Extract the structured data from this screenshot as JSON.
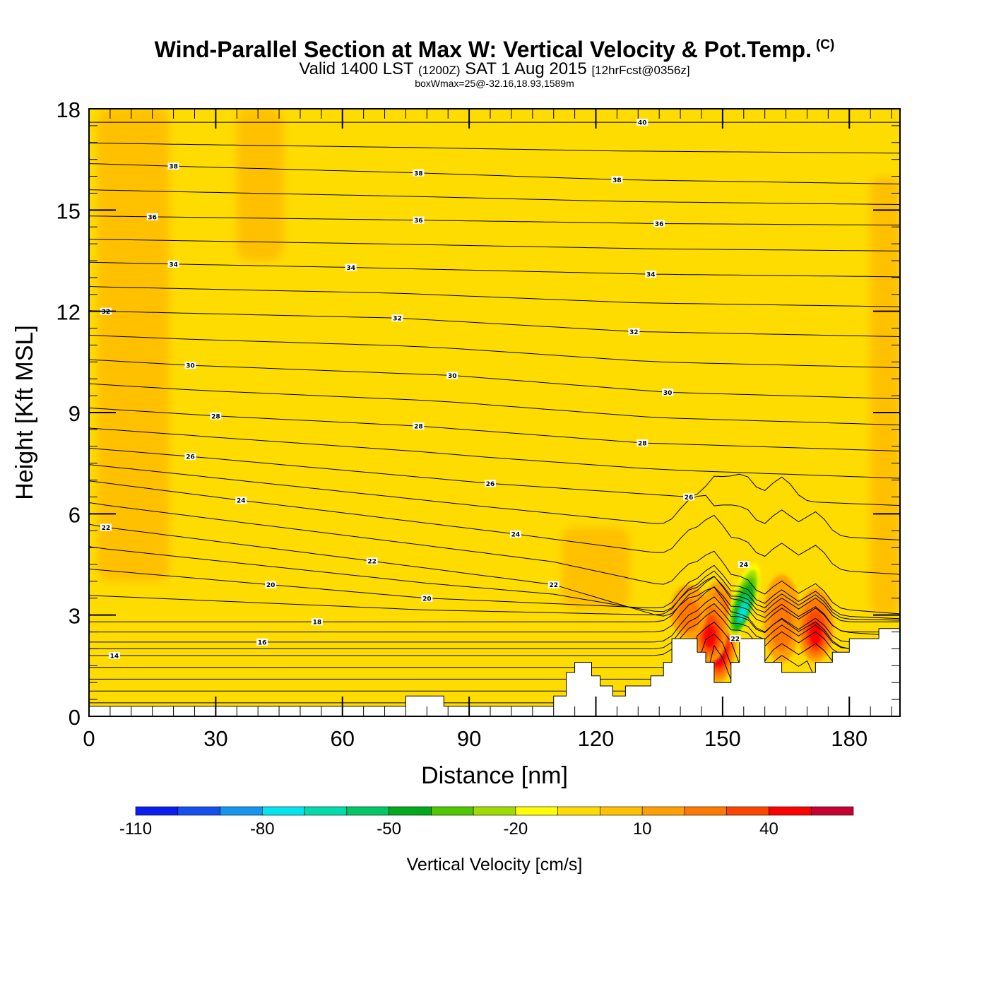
{
  "header": {
    "title": "Wind-Parallel Section at Max W: Vertical Velocity & Pot.Temp.",
    "copyright": "(C)",
    "subtitle_main": "Valid 1400 LST",
    "subtitle_utc": "(1200Z)",
    "subtitle_date": "SAT 1 Aug 2015",
    "subtitle_fcst": "[12hrFcst@0356z]",
    "boxline": "boxWmax=25@-32.16,18.93,1589m"
  },
  "colors": {
    "background_field": "#ffdc00",
    "weak_updraft": "#ffc000",
    "terrain": "#ffffff",
    "contour": "#000000"
  },
  "chart_data": {
    "type": "heatmap",
    "title": "Wind-Parallel Section at Max W: Vertical Velocity & Pot.Temp.",
    "xlabel": "Distance [nm]",
    "ylabel": "Height [Kft MSL]",
    "xlim": [
      0,
      192
    ],
    "ylim": [
      0,
      18
    ],
    "x_ticks": [
      0,
      30,
      60,
      90,
      120,
      150,
      180
    ],
    "y_ticks": [
      0,
      3,
      6,
      9,
      12,
      15,
      18
    ],
    "colorbar": {
      "title": "Vertical Velocity [cm/s]",
      "tick_labels": [
        -110,
        -80,
        -50,
        -20,
        10,
        40
      ],
      "bins": [
        -110,
        -100,
        -90,
        -80,
        -70,
        -60,
        -50,
        -40,
        -30,
        -20,
        -10,
        0,
        10,
        20,
        30,
        40,
        50,
        60
      ],
      "colors": [
        "#0a1ef0",
        "#1450f0",
        "#1496f0",
        "#00e6f0",
        "#00dcaa",
        "#00c864",
        "#00aa1e",
        "#50c800",
        "#a0dc00",
        "#ffff00",
        "#ffdc00",
        "#ffc000",
        "#ffa000",
        "#ff7800",
        "#ff4600",
        "#ff0000",
        "#c80032"
      ]
    },
    "theta_contour_labels": [
      {
        "value": 40,
        "x": 131,
        "y": 17.6
      },
      {
        "value": 38,
        "x": 20,
        "y": 16.3
      },
      {
        "value": 38,
        "x": 78,
        "y": 16.1
      },
      {
        "value": 38,
        "x": 125,
        "y": 15.9
      },
      {
        "value": 36,
        "x": 15,
        "y": 14.8
      },
      {
        "value": 36,
        "x": 78,
        "y": 14.7
      },
      {
        "value": 36,
        "x": 135,
        "y": 14.6
      },
      {
        "value": 34,
        "x": 20,
        "y": 13.4
      },
      {
        "value": 34,
        "x": 62,
        "y": 13.3
      },
      {
        "value": 34,
        "x": 133,
        "y": 13.1
      },
      {
        "value": 32,
        "x": 4,
        "y": 12.0
      },
      {
        "value": 32,
        "x": 73,
        "y": 11.8
      },
      {
        "value": 32,
        "x": 129,
        "y": 11.4
      },
      {
        "value": 30,
        "x": 24,
        "y": 10.4
      },
      {
        "value": 30,
        "x": 86,
        "y": 10.1
      },
      {
        "value": 30,
        "x": 137,
        "y": 9.6
      },
      {
        "value": 28,
        "x": 30,
        "y": 8.9
      },
      {
        "value": 28,
        "x": 78,
        "y": 8.6
      },
      {
        "value": 28,
        "x": 131,
        "y": 8.1
      },
      {
        "value": 26,
        "x": 24,
        "y": 7.7
      },
      {
        "value": 26,
        "x": 95,
        "y": 6.9
      },
      {
        "value": 26,
        "x": 142,
        "y": 6.5
      },
      {
        "value": 24,
        "x": 36,
        "y": 6.4
      },
      {
        "value": 24,
        "x": 101,
        "y": 5.4
      },
      {
        "value": 24,
        "x": 155,
        "y": 4.5
      },
      {
        "value": 22,
        "x": 4,
        "y": 5.6
      },
      {
        "value": 22,
        "x": 67,
        "y": 4.6
      },
      {
        "value": 22,
        "x": 110,
        "y": 3.9
      },
      {
        "value": 22,
        "x": 153,
        "y": 2.3
      },
      {
        "value": 20,
        "x": 43,
        "y": 3.9
      },
      {
        "value": 20,
        "x": 80,
        "y": 3.5
      },
      {
        "value": 18,
        "x": 54,
        "y": 2.8
      },
      {
        "value": 16,
        "x": 41,
        "y": 2.2
      },
      {
        "value": 14,
        "x": 6,
        "y": 1.8
      }
    ],
    "terrain_profile": [
      [
        0,
        0.3
      ],
      [
        75,
        0.3
      ],
      [
        75,
        0.6
      ],
      [
        84,
        0.6
      ],
      [
        84,
        0.3
      ],
      [
        110,
        0.3
      ],
      [
        110,
        0.6
      ],
      [
        113,
        0.6
      ],
      [
        113,
        1.3
      ],
      [
        115,
        1.3
      ],
      [
        115,
        1.6
      ],
      [
        119,
        1.6
      ],
      [
        119,
        1.2
      ],
      [
        121,
        1.2
      ],
      [
        121,
        0.9
      ],
      [
        124,
        0.9
      ],
      [
        124,
        0.6
      ],
      [
        127,
        0.6
      ],
      [
        127,
        0.9
      ],
      [
        133,
        0.9
      ],
      [
        133,
        1.2
      ],
      [
        136,
        1.2
      ],
      [
        136,
        1.6
      ],
      [
        138,
        1.6
      ],
      [
        138,
        2.3
      ],
      [
        144,
        2.3
      ],
      [
        144,
        1.9
      ],
      [
        146,
        1.9
      ],
      [
        146,
        1.6
      ],
      [
        148,
        1.6
      ],
      [
        148,
        1.0
      ],
      [
        152,
        1.0
      ],
      [
        152,
        1.6
      ],
      [
        154,
        1.6
      ],
      [
        154,
        2.3
      ],
      [
        160,
        2.3
      ],
      [
        160,
        1.6
      ],
      [
        164,
        1.6
      ],
      [
        164,
        1.3
      ],
      [
        172,
        1.3
      ],
      [
        172,
        1.6
      ],
      [
        176,
        1.6
      ],
      [
        176,
        1.9
      ],
      [
        180,
        1.9
      ],
      [
        180,
        2.3
      ],
      [
        187,
        2.3
      ],
      [
        187,
        2.6
      ],
      [
        192,
        2.6
      ]
    ],
    "updraft_cores": [
      {
        "x": 149,
        "y_bottom": 1.0,
        "y_top": 4.0,
        "w_max": 60
      },
      {
        "x": 147,
        "y_bottom": 1.6,
        "y_top": 3.6,
        "w_max": 40
      },
      {
        "x": 142,
        "y_bottom": 2.3,
        "y_top": 3.9,
        "w_max": 20
      },
      {
        "x": 172,
        "y_bottom": 1.6,
        "y_top": 3.8,
        "w_max": 40
      },
      {
        "x": 164,
        "y_bottom": 1.6,
        "y_top": 4.2,
        "w_max": 20
      }
    ],
    "downdraft_cores": [
      {
        "x": 155,
        "y_bottom": 2.3,
        "y_top": 4.6,
        "w_min": -80
      }
    ],
    "weak_ascent_regions": [
      {
        "x0": 2,
        "x1": 19,
        "y0": 4.0,
        "y1": 18.0
      },
      {
        "x0": 35,
        "x1": 46,
        "y0": 13.5,
        "y1": 18.0
      },
      {
        "x0": 112,
        "x1": 128,
        "y0": 3.2,
        "y1": 5.6
      },
      {
        "x0": 185,
        "x1": 192,
        "y0": 3.0,
        "y1": 16.0
      }
    ]
  }
}
